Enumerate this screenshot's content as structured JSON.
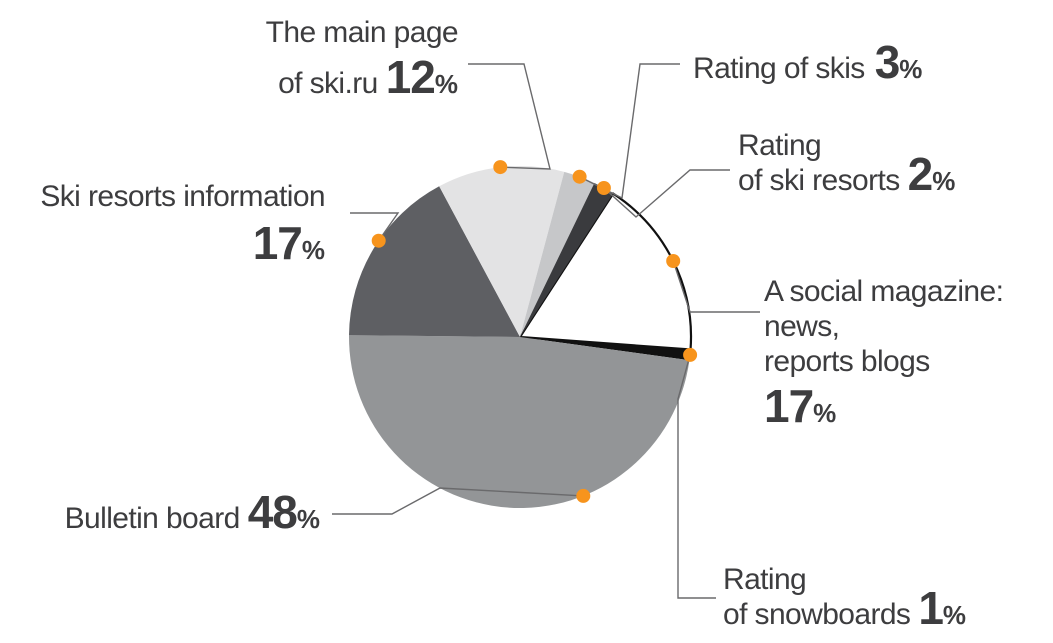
{
  "chart_data": {
    "type": "pie",
    "slices": [
      {
        "label": [
          "A social magazine:",
          "news,",
          "reports blogs"
        ],
        "value": 17,
        "value_text": "17",
        "unit": "%",
        "color": "#ffffff",
        "outline": "#111111"
      },
      {
        "label": [
          "Rating",
          "of snowboards"
        ],
        "value": 1,
        "value_text": "1",
        "unit": "%",
        "color": "#111111"
      },
      {
        "label": [
          "Bulletin board"
        ],
        "value": 48,
        "value_text": "48",
        "unit": "%",
        "color": "#939597"
      },
      {
        "label": [
          "Ski resorts information"
        ],
        "value": 17,
        "value_text": "17",
        "unit": "%",
        "color": "#5e5f63"
      },
      {
        "label": [
          "The main page",
          "of ski.ru"
        ],
        "value": 12,
        "value_text": "12",
        "unit": "%",
        "color": "#e3e3e4"
      },
      {
        "label": [
          "Rating of skis"
        ],
        "value": 3,
        "value_text": "3",
        "unit": "%",
        "color": "#c6c7c9"
      },
      {
        "label": [
          "Rating",
          "of ski resorts"
        ],
        "value": 2,
        "value_text": "2",
        "unit": "%",
        "color": "#3a3b3e"
      }
    ],
    "legend": "none",
    "callout_marker_color": "#f7941d"
  }
}
